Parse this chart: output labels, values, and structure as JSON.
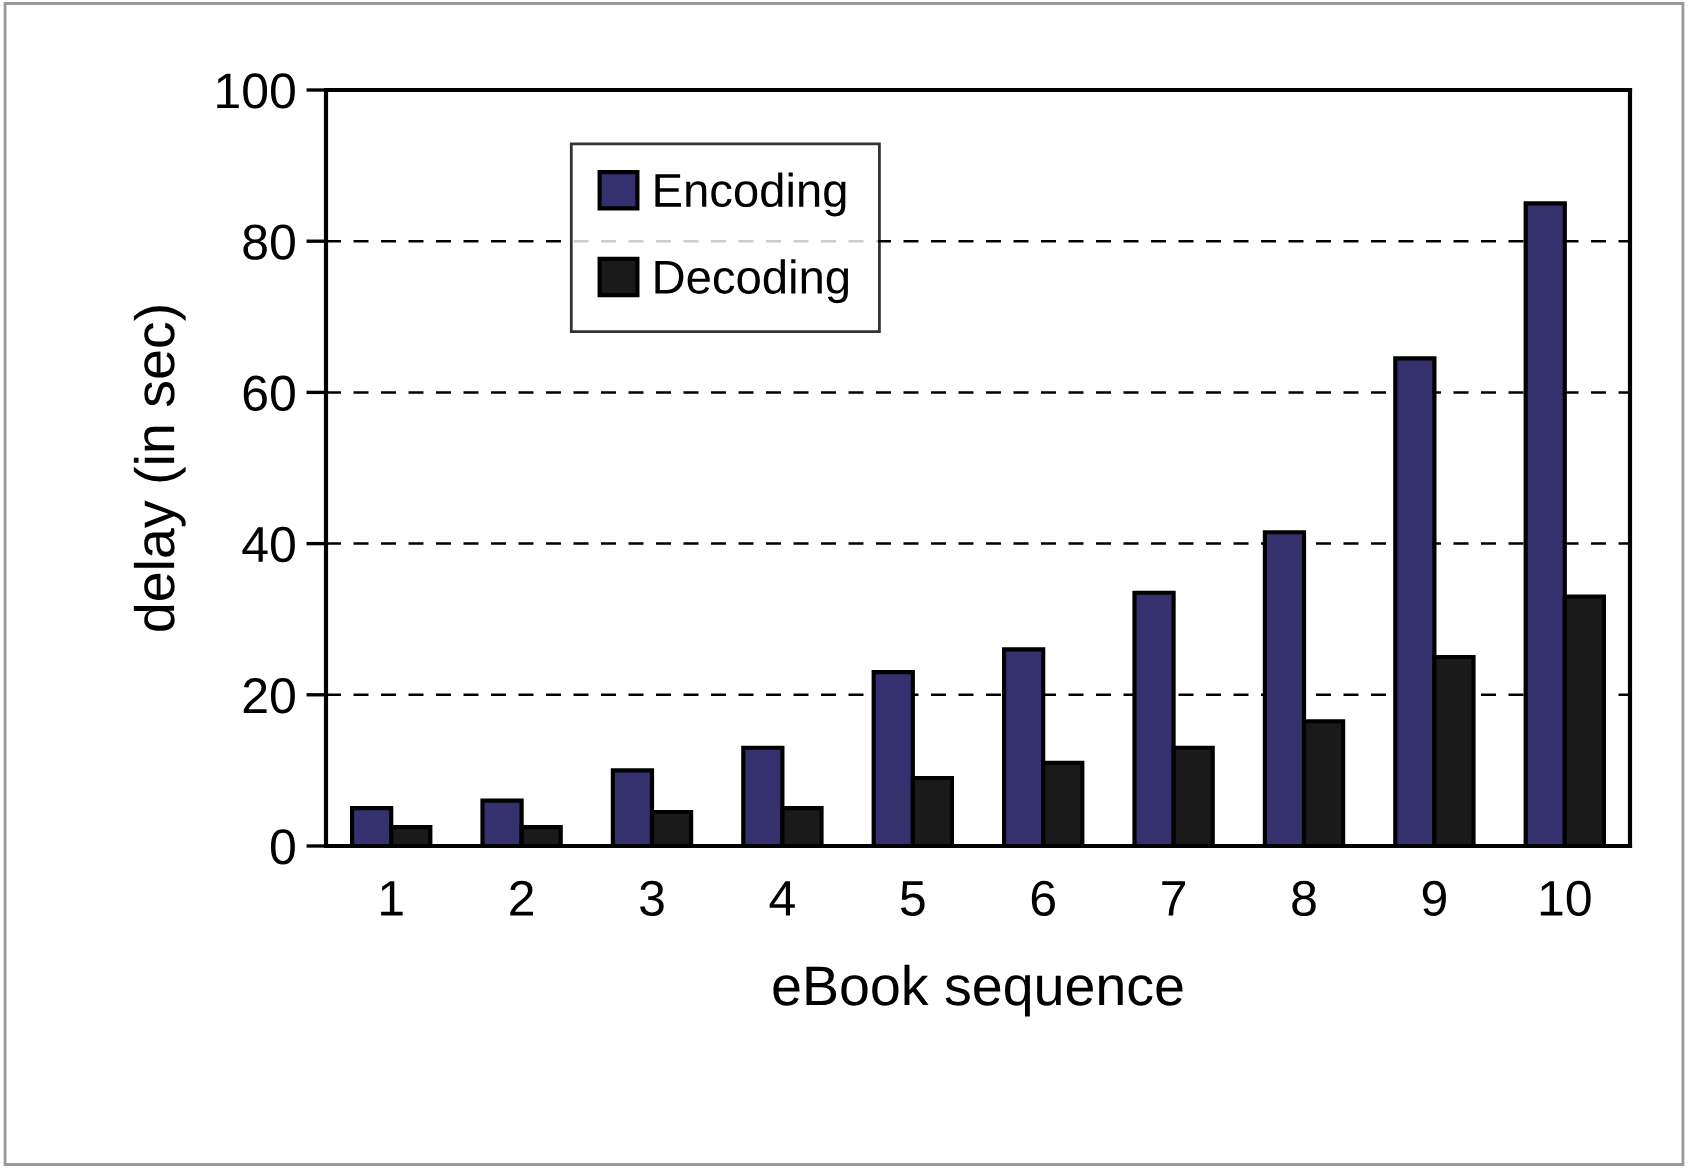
{
  "chart_data": {
    "type": "bar",
    "xlabel": "eBook sequence",
    "ylabel": "delay (in sec)",
    "categories": [
      "1",
      "2",
      "3",
      "4",
      "5",
      "6",
      "7",
      "8",
      "9",
      "10"
    ],
    "series": [
      {
        "name": "Encoding",
        "color": "#35306e",
        "values": [
          5,
          6,
          10,
          13,
          23,
          26,
          33.5,
          41.5,
          64.5,
          85
        ]
      },
      {
        "name": "Decoding",
        "color": "#1a1a1a",
        "values": [
          2.5,
          2.5,
          4.5,
          5,
          9,
          11,
          13,
          16.5,
          25,
          33
        ]
      }
    ],
    "ylim": [
      0,
      100
    ],
    "yticks": [
      0,
      20,
      40,
      60,
      80,
      100
    ],
    "grid": "y",
    "legend": "top"
  }
}
